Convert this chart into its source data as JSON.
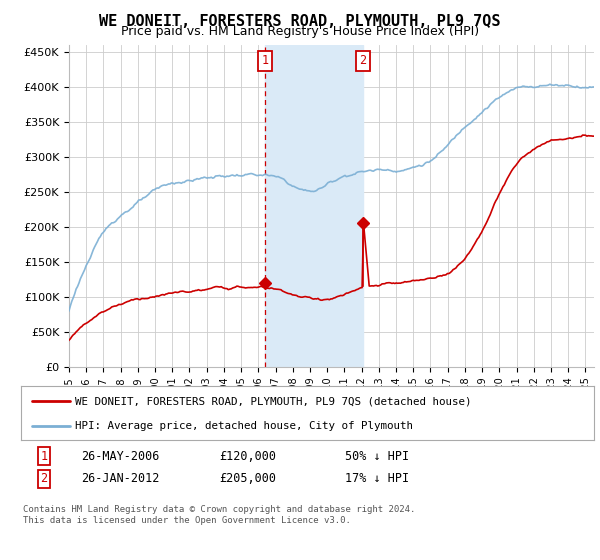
{
  "title": "WE DONEIT, FORESTERS ROAD, PLYMOUTH, PL9 7QS",
  "subtitle": "Price paid vs. HM Land Registry's House Price Index (HPI)",
  "title_fontsize": 11,
  "subtitle_fontsize": 9,
  "ylabel_ticks": [
    "£0",
    "£50K",
    "£100K",
    "£150K",
    "£200K",
    "£250K",
    "£300K",
    "£350K",
    "£400K",
    "£450K"
  ],
  "ytick_values": [
    0,
    50000,
    100000,
    150000,
    200000,
    250000,
    300000,
    350000,
    400000,
    450000
  ],
  "ylim": [
    0,
    460000
  ],
  "xlim_start": 1995.0,
  "xlim_end": 2025.5,
  "hpi_color": "#7bafd4",
  "price_color": "#cc0000",
  "annotation_box_color": "#cc0000",
  "highlight_fill": "#daeaf7",
  "transaction1_x": 2006.38,
  "transaction1_y": 120000,
  "transaction2_x": 2012.07,
  "transaction2_y": 205000,
  "legend_label_red": "WE DONEIT, FORESTERS ROAD, PLYMOUTH, PL9 7QS (detached house)",
  "legend_label_blue": "HPI: Average price, detached house, City of Plymouth",
  "table_row1": [
    "1",
    "26-MAY-2006",
    "£120,000",
    "50% ↓ HPI"
  ],
  "table_row2": [
    "2",
    "26-JAN-2012",
    "£205,000",
    "17% ↓ HPI"
  ],
  "footnote": "Contains HM Land Registry data © Crown copyright and database right 2024.\nThis data is licensed under the Open Government Licence v3.0.",
  "background_color": "#ffffff",
  "grid_color": "#cccccc"
}
